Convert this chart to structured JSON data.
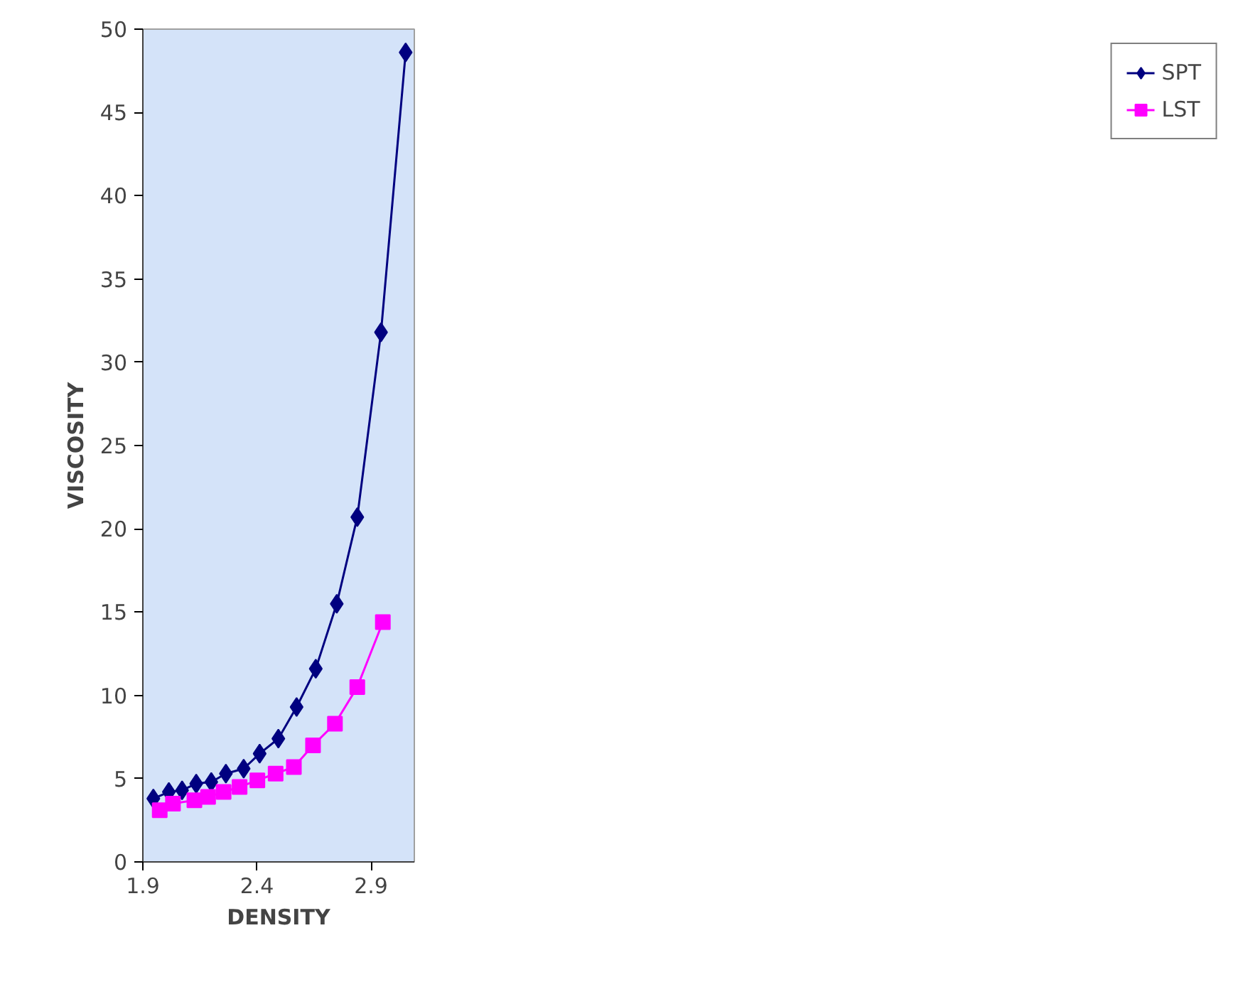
{
  "chart_data": {
    "type": "line",
    "xlabel": "DENSITY",
    "ylabel": "VISCOSITY",
    "xlim": [
      1.9,
      3.09
    ],
    "xticks": [
      1.9,
      2.4,
      2.9
    ],
    "ylim": [
      0,
      50
    ],
    "yticks": [
      0,
      5,
      10,
      15,
      20,
      25,
      30,
      35,
      40,
      45,
      50
    ],
    "grid": false,
    "legend": "right",
    "line_style": "solid",
    "series": [
      {
        "name": "SPT",
        "color": "#000080",
        "marker": "diamond",
        "x": [
          1.946,
          2.014,
          2.072,
          2.134,
          2.2,
          2.264,
          2.342,
          2.412,
          2.494,
          2.574,
          2.658,
          2.75,
          2.84,
          2.944,
          3.052
        ],
        "values": [
          3.8,
          4.2,
          4.3,
          4.7,
          4.8,
          5.3,
          5.6,
          6.5,
          7.4,
          9.3,
          11.6,
          15.5,
          20.7,
          31.8,
          48.6
        ]
      },
      {
        "name": "LST",
        "color": "#ff00ff",
        "marker": "square",
        "x": [
          1.974,
          2.032,
          2.126,
          2.186,
          2.254,
          2.324,
          2.402,
          2.482,
          2.562,
          2.646,
          2.742,
          2.84,
          2.952
        ],
        "values": [
          3.1,
          3.5,
          3.7,
          3.9,
          4.2,
          4.5,
          4.9,
          5.3,
          5.7,
          7.0,
          8.3,
          10.5,
          14.4
        ]
      }
    ]
  }
}
